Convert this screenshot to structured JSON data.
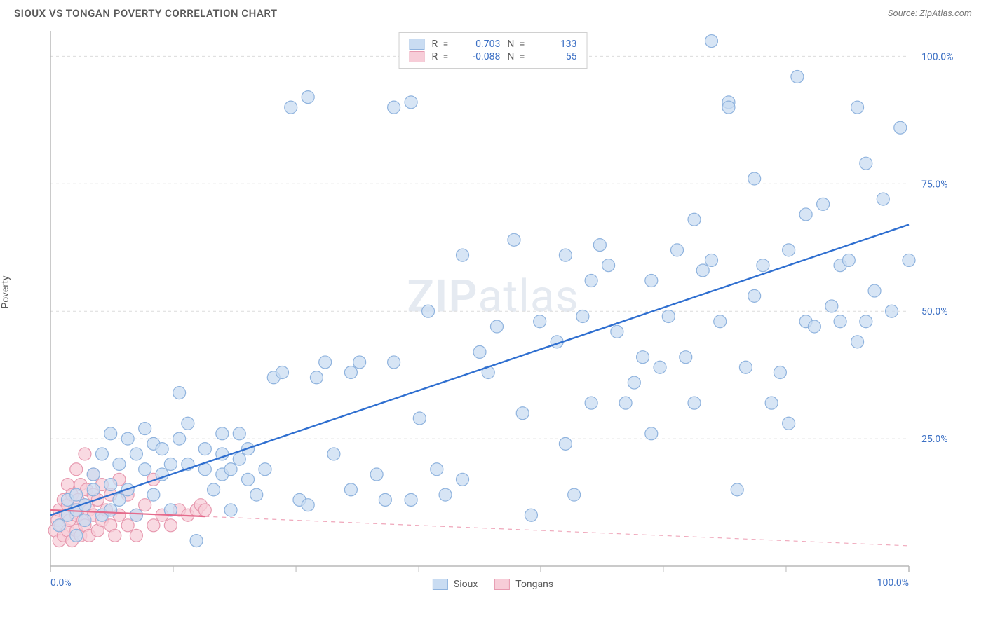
{
  "title": "SIOUX VS TONGAN POVERTY CORRELATION CHART",
  "source": "Source: ZipAtlas.com",
  "ylabel": "Poverty",
  "watermark_a": "ZIP",
  "watermark_b": "atlas",
  "chart": {
    "type": "scatter",
    "xlim": [
      0,
      100
    ],
    "ylim": [
      0,
      105
    ],
    "xticks": [
      0,
      100
    ],
    "xtick_labels": [
      "0.0%",
      "100.0%"
    ],
    "xminor": [
      14.3,
      28.6,
      42.9,
      57.1,
      71.4,
      85.7
    ],
    "yticks": [
      25,
      50,
      75,
      100
    ],
    "ytick_labels": [
      "25.0%",
      "50.0%",
      "75.0%",
      "100.0%"
    ],
    "grid_color": "#dcdcdc",
    "axis_color": "#b8b8b8",
    "background": "#ffffff",
    "marker_radius": 9,
    "marker_stroke_width": 1.2,
    "series": [
      {
        "name": "Sioux",
        "fill": "#c9dcf2",
        "stroke": "#8fb3de",
        "line_color": "#2f6fd0",
        "line_width": 2.4,
        "r_label": "R =",
        "r_value": "0.703",
        "n_label": "N =",
        "n_value": "133",
        "trend": {
          "x1": 0,
          "y1": 10,
          "x2": 100,
          "y2": 67,
          "dash": false
        },
        "points": [
          [
            1,
            8
          ],
          [
            2,
            10
          ],
          [
            2,
            13
          ],
          [
            3,
            6
          ],
          [
            3,
            11
          ],
          [
            3,
            14
          ],
          [
            4,
            9
          ],
          [
            4,
            12
          ],
          [
            5,
            15
          ],
          [
            5,
            18
          ],
          [
            6,
            10
          ],
          [
            6,
            22
          ],
          [
            7,
            11
          ],
          [
            7,
            16
          ],
          [
            7,
            26
          ],
          [
            8,
            13
          ],
          [
            8,
            20
          ],
          [
            9,
            15
          ],
          [
            9,
            25
          ],
          [
            10,
            10
          ],
          [
            10,
            22
          ],
          [
            11,
            19
          ],
          [
            11,
            27
          ],
          [
            12,
            14
          ],
          [
            12,
            24
          ],
          [
            13,
            18
          ],
          [
            13,
            23
          ],
          [
            14,
            11
          ],
          [
            14,
            20
          ],
          [
            15,
            34
          ],
          [
            15,
            25
          ],
          [
            16,
            20
          ],
          [
            16,
            28
          ],
          [
            17,
            5
          ],
          [
            18,
            19
          ],
          [
            18,
            23
          ],
          [
            19,
            15
          ],
          [
            20,
            18
          ],
          [
            20,
            22
          ],
          [
            20,
            26
          ],
          [
            21,
            11
          ],
          [
            21,
            19
          ],
          [
            22,
            21
          ],
          [
            22,
            26
          ],
          [
            23,
            17
          ],
          [
            23,
            23
          ],
          [
            24,
            14
          ],
          [
            25,
            19
          ],
          [
            26,
            37
          ],
          [
            27,
            38
          ],
          [
            28,
            90
          ],
          [
            29,
            13
          ],
          [
            30,
            12
          ],
          [
            30,
            92
          ],
          [
            31,
            37
          ],
          [
            32,
            40
          ],
          [
            33,
            22
          ],
          [
            35,
            38
          ],
          [
            35,
            15
          ],
          [
            36,
            40
          ],
          [
            38,
            18
          ],
          [
            39,
            13
          ],
          [
            40,
            90
          ],
          [
            40,
            40
          ],
          [
            42,
            13
          ],
          [
            42,
            91
          ],
          [
            43,
            29
          ],
          [
            44,
            50
          ],
          [
            45,
            19
          ],
          [
            46,
            14
          ],
          [
            48,
            17
          ],
          [
            48,
            61
          ],
          [
            50,
            42
          ],
          [
            51,
            38
          ],
          [
            52,
            47
          ],
          [
            54,
            64
          ],
          [
            55,
            30
          ],
          [
            56,
            10
          ],
          [
            57,
            48
          ],
          [
            59,
            44
          ],
          [
            60,
            61
          ],
          [
            60,
            24
          ],
          [
            61,
            14
          ],
          [
            62,
            49
          ],
          [
            63,
            32
          ],
          [
            63,
            56
          ],
          [
            64,
            63
          ],
          [
            65,
            59
          ],
          [
            66,
            46
          ],
          [
            67,
            32
          ],
          [
            68,
            36
          ],
          [
            69,
            41
          ],
          [
            70,
            26
          ],
          [
            70,
            56
          ],
          [
            71,
            39
          ],
          [
            72,
            49
          ],
          [
            73,
            62
          ],
          [
            74,
            41
          ],
          [
            75,
            68
          ],
          [
            75,
            32
          ],
          [
            76,
            58
          ],
          [
            77,
            103
          ],
          [
            77,
            60
          ],
          [
            78,
            48
          ],
          [
            79,
            91
          ],
          [
            79,
            90
          ],
          [
            80,
            15
          ],
          [
            81,
            39
          ],
          [
            82,
            53
          ],
          [
            82,
            76
          ],
          [
            83,
            59
          ],
          [
            84,
            32
          ],
          [
            85,
            38
          ],
          [
            86,
            28
          ],
          [
            86,
            62
          ],
          [
            87,
            96
          ],
          [
            88,
            48
          ],
          [
            88,
            69
          ],
          [
            89,
            47
          ],
          [
            90,
            71
          ],
          [
            91,
            51
          ],
          [
            92,
            59
          ],
          [
            92,
            48
          ],
          [
            93,
            60
          ],
          [
            94,
            90
          ],
          [
            94,
            44
          ],
          [
            95,
            79
          ],
          [
            95,
            48
          ],
          [
            96,
            54
          ],
          [
            97,
            72
          ],
          [
            98,
            50
          ],
          [
            99,
            86
          ],
          [
            100,
            60
          ]
        ]
      },
      {
        "name": "Tongans",
        "fill": "#f7cdd8",
        "stroke": "#e79ab0",
        "line_color": "#e56b8c",
        "line_width": 2.2,
        "r_label": "R =",
        "r_value": "-0.088",
        "n_label": "N =",
        "n_value": "55",
        "trend": {
          "x1": 0,
          "y1": 11,
          "x2": 100,
          "y2": 4,
          "dash_after": 18
        },
        "points": [
          [
            0.5,
            7
          ],
          [
            0.8,
            9
          ],
          [
            1,
            5
          ],
          [
            1,
            11
          ],
          [
            1.2,
            8
          ],
          [
            1.5,
            6
          ],
          [
            1.5,
            13
          ],
          [
            1.8,
            10
          ],
          [
            2,
            7
          ],
          [
            2,
            12
          ],
          [
            2,
            16
          ],
          [
            2.2,
            9
          ],
          [
            2.5,
            5
          ],
          [
            2.5,
            14
          ],
          [
            2.8,
            11
          ],
          [
            3,
            7
          ],
          [
            3,
            10
          ],
          [
            3,
            19
          ],
          [
            3.2,
            13
          ],
          [
            3.5,
            6
          ],
          [
            3.5,
            16
          ],
          [
            3.8,
            9
          ],
          [
            4,
            12
          ],
          [
            4,
            8
          ],
          [
            4,
            22
          ],
          [
            4.2,
            15
          ],
          [
            4.5,
            6
          ],
          [
            4.5,
            11
          ],
          [
            5,
            10
          ],
          [
            5,
            14
          ],
          [
            5,
            18
          ],
          [
            5.5,
            7
          ],
          [
            5.5,
            13
          ],
          [
            6,
            9
          ],
          [
            6,
            16
          ],
          [
            6.5,
            11
          ],
          [
            7,
            8
          ],
          [
            7,
            14
          ],
          [
            7.5,
            6
          ],
          [
            8,
            10
          ],
          [
            8,
            17
          ],
          [
            9,
            8
          ],
          [
            9,
            14
          ],
          [
            10,
            10
          ],
          [
            10,
            6
          ],
          [
            11,
            12
          ],
          [
            12,
            8
          ],
          [
            12,
            17
          ],
          [
            13,
            10
          ],
          [
            14,
            8
          ],
          [
            15,
            11
          ],
          [
            16,
            10
          ],
          [
            17,
            11
          ],
          [
            17.5,
            12
          ],
          [
            18,
            11
          ]
        ]
      }
    ]
  }
}
